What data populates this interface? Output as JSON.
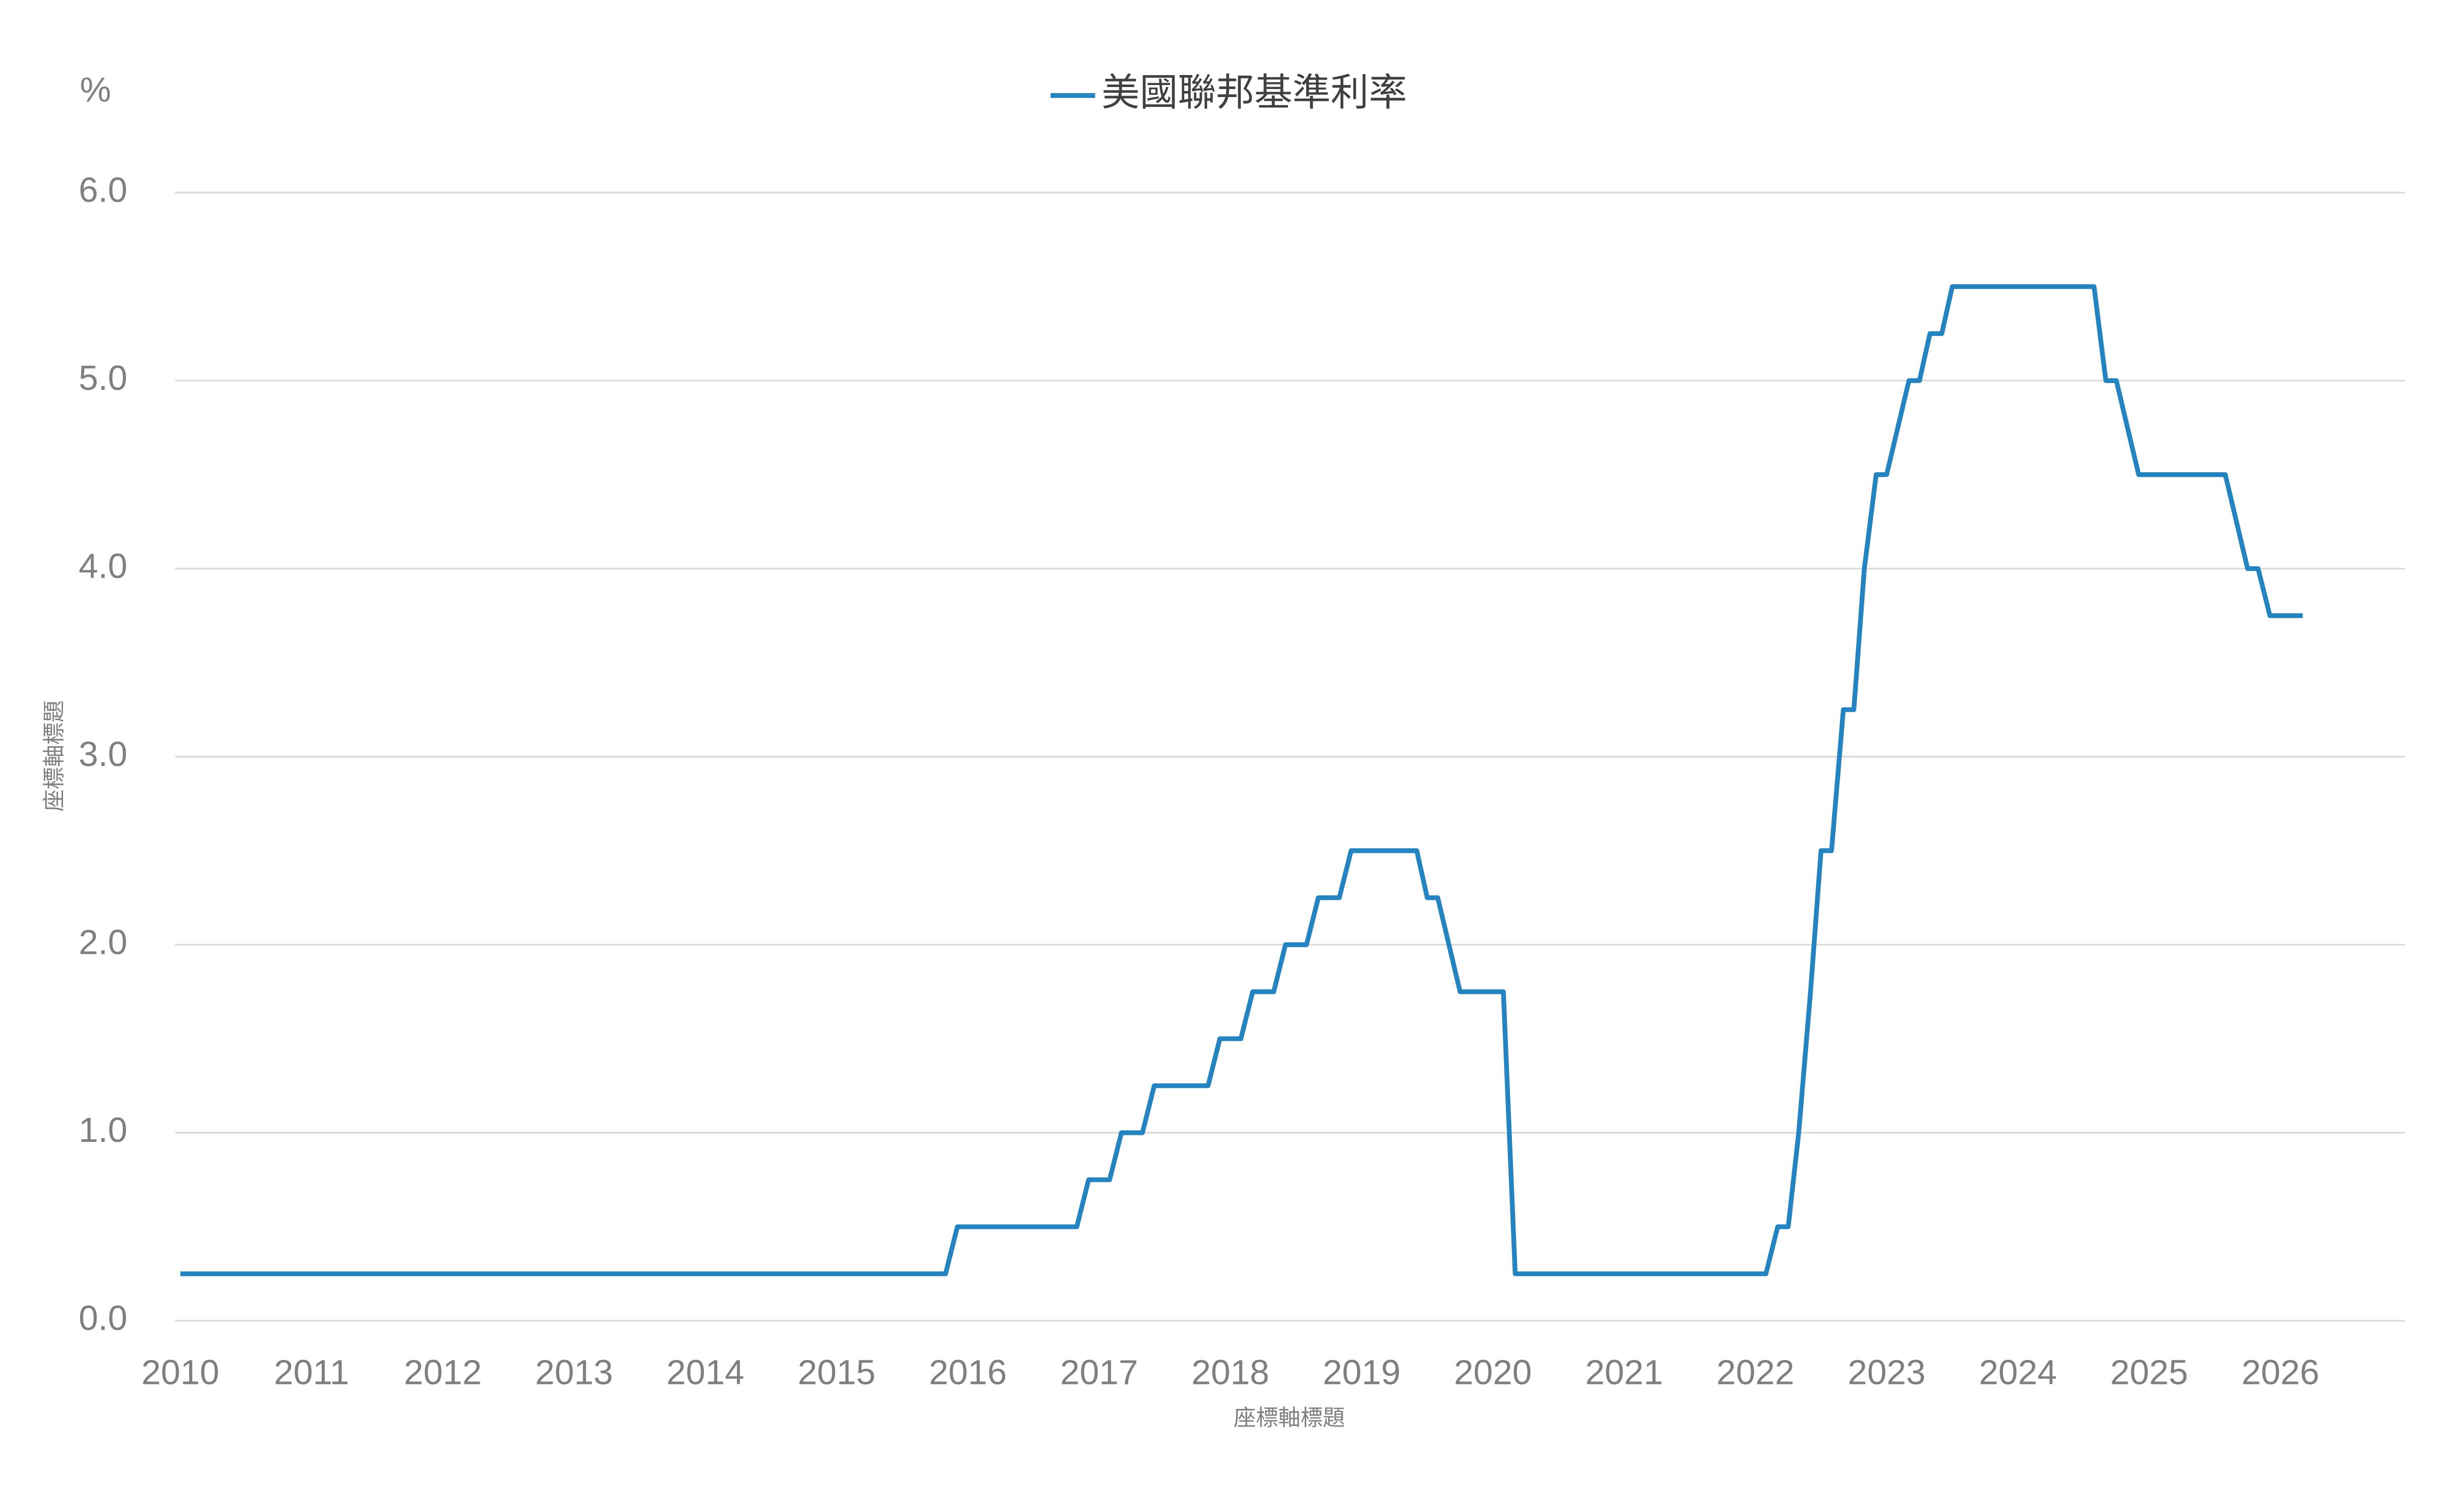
{
  "chart_data": {
    "type": "line",
    "unit_label": "%",
    "x_axis_title": "座標軸標題",
    "y_axis_title": "座標軸標題",
    "x": [
      2010.0,
      2015.83,
      2015.92,
      2016.83,
      2016.92,
      2017.08,
      2017.17,
      2017.33,
      2017.42,
      2017.83,
      2017.92,
      2018.08,
      2018.17,
      2018.33,
      2018.42,
      2018.58,
      2018.67,
      2018.83,
      2018.92,
      2019.42,
      2019.5,
      2019.58,
      2019.75,
      2020.08,
      2020.17,
      2022.08,
      2022.17,
      2022.25,
      2022.33,
      2022.42,
      2022.5,
      2022.58,
      2022.67,
      2022.75,
      2022.83,
      2022.92,
      2023.0,
      2023.17,
      2023.25,
      2023.33,
      2023.42,
      2023.5,
      2024.58,
      2024.67,
      2024.75,
      2024.92,
      2025.58,
      2025.75,
      2025.83,
      2025.92,
      2026.17
    ],
    "series": [
      {
        "name": "美國聯邦基準利率",
        "color": "#2584c0",
        "values": [
          0.25,
          0.25,
          0.5,
          0.5,
          0.75,
          0.75,
          1.0,
          1.0,
          1.25,
          1.25,
          1.5,
          1.5,
          1.75,
          1.75,
          2.0,
          2.0,
          2.25,
          2.25,
          2.5,
          2.5,
          2.25,
          2.25,
          1.75,
          1.75,
          0.25,
          0.25,
          0.5,
          0.5,
          1.0,
          1.75,
          2.5,
          2.5,
          3.25,
          3.25,
          4.0,
          4.5,
          4.5,
          5.0,
          5.0,
          5.25,
          5.25,
          5.5,
          5.5,
          5.0,
          5.0,
          4.5,
          4.5,
          4.0,
          4.0,
          3.75,
          3.75
        ]
      }
    ],
    "xlim": [
      2009.96,
      2026.95
    ],
    "xticks": [
      2010,
      2011,
      2012,
      2013,
      2014,
      2015,
      2016,
      2017,
      2018,
      2019,
      2020,
      2021,
      2022,
      2023,
      2024,
      2025,
      2026
    ],
    "ylim": [
      0,
      6
    ],
    "yticks": [
      {
        "value": 0,
        "label": "0.0"
      },
      {
        "value": 1,
        "label": "1.0"
      },
      {
        "value": 2,
        "label": "2.0"
      },
      {
        "value": 3,
        "label": "3.0"
      },
      {
        "value": 4,
        "label": "4.0"
      },
      {
        "value": 5,
        "label": "5.0"
      },
      {
        "value": 6,
        "label": "6.0"
      }
    ],
    "grid": true,
    "legend": "top"
  }
}
